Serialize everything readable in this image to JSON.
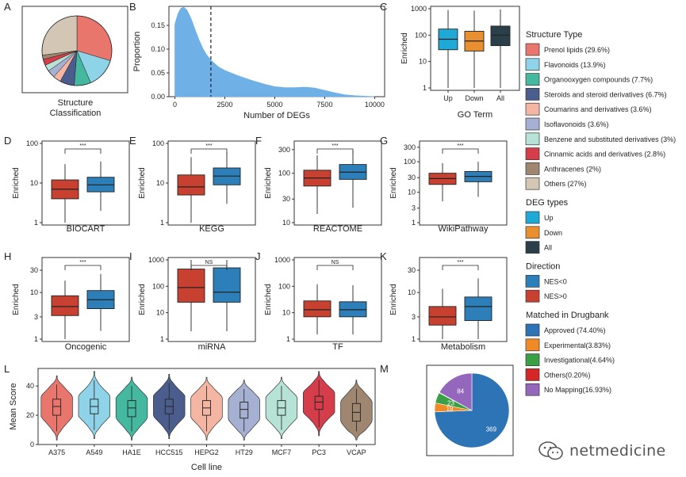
{
  "colors": {
    "up": "#1fa9d6",
    "down": "#e8902f",
    "all": "#2b3f4a",
    "nes_neg": "#2c7fb8",
    "nes_pos": "#c8402f",
    "density": "#6fb0e6"
  },
  "panel_letters": [
    "A",
    "B",
    "C",
    "D",
    "E",
    "F",
    "G",
    "H",
    "I",
    "J",
    "K",
    "L",
    "M"
  ],
  "chart_data": [
    {
      "id": "A",
      "type": "pie",
      "xlabel": "Structure\nClassification",
      "xlabel_lines": [
        "Structure",
        "Classification"
      ],
      "slices": [
        {
          "label": "Prenol lipids (29.6%)",
          "value": 29.6,
          "color": "#e8766d"
        },
        {
          "label": "Flavonoids (13.9%)",
          "value": 13.9,
          "color": "#8fd3e8"
        },
        {
          "label": "Organooxygen compounds (7.7%)",
          "value": 7.7,
          "color": "#45b8a0"
        },
        {
          "label": "Steroids and steroid derivatives (6.7%)",
          "value": 6.7,
          "color": "#4b5d8c"
        },
        {
          "label": "Coumarins and derivatives (3.6%)",
          "value": 3.6,
          "color": "#f4b6a3"
        },
        {
          "label": "Isoflavonoids (3.6%)",
          "value": 3.6,
          "color": "#a6b0d2"
        },
        {
          "label": "Benzene and substituted derivatives (3%)",
          "value": 3.0,
          "color": "#b7e2d6"
        },
        {
          "label": "Cinnamic acids and derivatives (2.8%)",
          "value": 2.8,
          "color": "#d43d49"
        },
        {
          "label": "Anthracenes (2%)",
          "value": 2.0,
          "color": "#9e8670"
        },
        {
          "label": "Others (27%)",
          "value": 27.0,
          "color": "#d4c6b4"
        }
      ]
    },
    {
      "id": "B",
      "type": "area",
      "xlabel": "Number of DEGs",
      "ylabel": "Proportion",
      "xlim": [
        -300,
        10500
      ],
      "ylim": [
        0,
        0.19
      ],
      "xticks": [
        0,
        2500,
        5000,
        7500,
        10000
      ],
      "xtick_labels": [
        "0",
        "2500",
        "5000",
        "7500",
        "10000"
      ],
      "yticks": [
        0,
        0.05,
        0.1,
        0.15
      ],
      "ytick_labels": [
        "0.00",
        "0.05",
        "0.10",
        "0.15"
      ],
      "x": [
        0,
        150,
        300,
        450,
        600,
        800,
        1000,
        1200,
        1400,
        1600,
        1800,
        2000,
        2200,
        2500,
        2800,
        3100,
        3500,
        4000,
        4500,
        5000,
        5500,
        6000,
        6500,
        7000,
        7500,
        8000,
        8500,
        9000,
        9500,
        10000
      ],
      "y": [
        0.152,
        0.174,
        0.186,
        0.188,
        0.182,
        0.165,
        0.142,
        0.12,
        0.101,
        0.087,
        0.077,
        0.069,
        0.062,
        0.055,
        0.05,
        0.045,
        0.039,
        0.032,
        0.026,
        0.021,
        0.019,
        0.019,
        0.02,
        0.018,
        0.013,
        0.008,
        0.004,
        0.002,
        0.001,
        0.0
      ],
      "vline": 1800
    },
    {
      "id": "C",
      "type": "box",
      "scale": "log",
      "xlabel": "GO Term",
      "ylabel": "Enriched",
      "ylim": [
        1,
        1000
      ],
      "yticks": [
        1,
        10,
        100,
        1000
      ],
      "ytick_labels": [
        "1",
        "10",
        "100",
        "1000"
      ],
      "categories": [
        "Up",
        "Down",
        "All"
      ],
      "boxes": [
        {
          "q1": 28,
          "median": 70,
          "q3": 170,
          "min": 1,
          "max": 900,
          "color_key": "up"
        },
        {
          "q1": 25,
          "median": 60,
          "q3": 140,
          "min": 1,
          "max": 850,
          "color_key": "down"
        },
        {
          "q1": 40,
          "median": 100,
          "q3": 220,
          "min": 1,
          "max": 950,
          "color_key": "all"
        }
      ]
    },
    {
      "id": "D",
      "type": "box",
      "scale": "log",
      "xlabel": "BIOCART",
      "ylabel": "Enriched",
      "ylim": [
        1,
        100
      ],
      "yticks": [
        1,
        10,
        100
      ],
      "ytick_labels": [
        "1",
        "10",
        "100"
      ],
      "sig": "***",
      "boxes": [
        {
          "q1": 4,
          "median": 7,
          "q3": 12,
          "min": 1,
          "max": 30,
          "color_key": "nes_pos"
        },
        {
          "q1": 6,
          "median": 9,
          "q3": 14,
          "min": 2,
          "max": 35,
          "color_key": "nes_neg"
        }
      ]
    },
    {
      "id": "E",
      "type": "box",
      "scale": "log",
      "xlabel": "KEGG",
      "ylabel": "Enriched",
      "ylim": [
        1,
        100
      ],
      "yticks": [
        1,
        10,
        100
      ],
      "ytick_labels": [
        "1",
        "10",
        "100"
      ],
      "sig": "***",
      "boxes": [
        {
          "q1": 5,
          "median": 8,
          "q3": 16,
          "min": 1,
          "max": 45,
          "color_key": "nes_pos"
        },
        {
          "q1": 9,
          "median": 15,
          "q3": 24,
          "min": 3,
          "max": 60,
          "color_key": "nes_neg"
        }
      ]
    },
    {
      "id": "F",
      "type": "box",
      "scale": "log",
      "xlabel": "REACTOME",
      "ylabel": "Enriched",
      "ylim": [
        10,
        400
      ],
      "yticks": [
        10,
        30,
        100,
        300
      ],
      "ytick_labels": [
        "10",
        "30",
        "100",
        "300"
      ],
      "sig": "***",
      "boxes": [
        {
          "q1": 55,
          "median": 80,
          "q3": 115,
          "min": 15,
          "max": 230,
          "color_key": "nes_pos"
        },
        {
          "q1": 75,
          "median": 105,
          "q3": 150,
          "min": 20,
          "max": 290,
          "color_key": "nes_neg"
        }
      ]
    },
    {
      "id": "G",
      "type": "box",
      "scale": "log",
      "xlabel": "WikiPathway",
      "ylabel": "Enriched",
      "ylim": [
        1,
        400
      ],
      "yticks": [
        1,
        3,
        10,
        30,
        100,
        300
      ],
      "ytick_labels": [
        "1",
        "3",
        "10",
        "30",
        "100",
        "300"
      ],
      "sig": "***",
      "boxes": [
        {
          "q1": 18,
          "median": 28,
          "q3": 42,
          "min": 5,
          "max": 90,
          "color_key": "nes_pos"
        },
        {
          "q1": 22,
          "median": 33,
          "q3": 48,
          "min": 7,
          "max": 100,
          "color_key": "nes_neg"
        }
      ]
    },
    {
      "id": "H",
      "type": "box",
      "scale": "log",
      "xlabel": "Oncogenic",
      "ylabel": "Enriched",
      "ylim": [
        1,
        50
      ],
      "yticks": [
        1,
        3,
        10,
        30
      ],
      "ytick_labels": [
        "1",
        "3",
        "10",
        "30"
      ],
      "sig": "***",
      "boxes": [
        {
          "q1": 3.2,
          "median": 5,
          "q3": 8.5,
          "min": 1,
          "max": 18,
          "color_key": "nes_pos"
        },
        {
          "q1": 4.5,
          "median": 7,
          "q3": 11,
          "min": 1.5,
          "max": 25,
          "color_key": "nes_neg"
        }
      ]
    },
    {
      "id": "I",
      "type": "box",
      "scale": "log",
      "xlabel": "miRNA",
      "ylabel": "Enriched",
      "ylim": [
        1,
        1000
      ],
      "yticks": [
        1,
        10,
        100,
        1000
      ],
      "ytick_labels": [
        "1",
        "10",
        "100",
        "1000"
      ],
      "sig": "NS",
      "boxes": [
        {
          "q1": 25,
          "median": 90,
          "q3": 450,
          "min": 2,
          "max": 1000,
          "color_key": "nes_pos"
        },
        {
          "q1": 25,
          "median": 60,
          "q3": 500,
          "min": 2,
          "max": 1000,
          "color_key": "nes_neg"
        }
      ]
    },
    {
      "id": "J",
      "type": "box",
      "scale": "log",
      "xlabel": "TF",
      "ylabel": "Enriched",
      "ylim": [
        1,
        1000
      ],
      "yticks": [
        1,
        10,
        100,
        1000
      ],
      "ytick_labels": [
        "1",
        "10",
        "100",
        "1000"
      ],
      "sig": "NS",
      "boxes": [
        {
          "q1": 7,
          "median": 13,
          "q3": 28,
          "min": 1.5,
          "max": 120,
          "color_key": "nes_pos"
        },
        {
          "q1": 7,
          "median": 13,
          "q3": 26,
          "min": 1.5,
          "max": 110,
          "color_key": "nes_neg"
        }
      ]
    },
    {
      "id": "K",
      "type": "box",
      "scale": "log",
      "xlabel": "Metabolism",
      "ylabel": "Enriched",
      "ylim": [
        1,
        50
      ],
      "yticks": [
        1,
        3,
        10,
        30
      ],
      "ytick_labels": [
        "1",
        "3",
        "10",
        "30"
      ],
      "sig": "***",
      "boxes": [
        {
          "q1": 2,
          "median": 3,
          "q3": 5,
          "min": 1,
          "max": 12,
          "color_key": "nes_pos"
        },
        {
          "q1": 2.5,
          "median": 5,
          "q3": 8,
          "min": 1,
          "max": 20,
          "color_key": "nes_neg"
        }
      ]
    },
    {
      "id": "L",
      "type": "violin",
      "xlabel": "Cell line",
      "ylabel": "Mean Score",
      "ylim": [
        0,
        52
      ],
      "yticks": [
        0,
        20,
        40
      ],
      "ytick_labels": [
        "0",
        "20",
        "40"
      ],
      "categories": [
        "A375",
        "A549",
        "HA1E",
        "HCC515",
        "HEPG2",
        "HT29",
        "MCF7",
        "PC3",
        "VCAP"
      ],
      "colors": [
        "#e8766d",
        "#8fd3e8",
        "#45b8a0",
        "#4b5d8c",
        "#f4b6a3",
        "#a6b0d2",
        "#b7e2d6",
        "#d43d49",
        "#9e8670"
      ],
      "stats": [
        {
          "min": 3,
          "q1": 20,
          "median": 26,
          "q3": 31,
          "max": 47
        },
        {
          "min": 4,
          "q1": 21,
          "median": 26,
          "q3": 31,
          "max": 50
        },
        {
          "min": 3,
          "q1": 19,
          "median": 25,
          "q3": 30,
          "max": 46
        },
        {
          "min": 4,
          "q1": 21,
          "median": 26,
          "q3": 31,
          "max": 48
        },
        {
          "min": 3,
          "q1": 20,
          "median": 25,
          "q3": 30,
          "max": 46
        },
        {
          "min": 3,
          "q1": 18,
          "median": 24,
          "q3": 29,
          "max": 44
        },
        {
          "min": 4,
          "q1": 20,
          "median": 25,
          "q3": 30,
          "max": 46
        },
        {
          "min": 6,
          "q1": 24,
          "median": 29,
          "q3": 33,
          "max": 50
        },
        {
          "min": 3,
          "q1": 16,
          "median": 22,
          "q3": 28,
          "max": 44
        }
      ]
    },
    {
      "id": "M",
      "type": "pie",
      "slices": [
        {
          "label": "Approved (74.40%)",
          "value": 369,
          "color": "#2c74b5",
          "show_value": true
        },
        {
          "label": "Experimental(3.83%)",
          "value": 19,
          "color": "#f08a24",
          "show_value": true
        },
        {
          "label": "Investigational(4.64%)",
          "value": 23,
          "color": "#3aa045",
          "show_value": true
        },
        {
          "label": "Others(0.20%)",
          "value": 1,
          "color": "#d62728",
          "show_value": false
        },
        {
          "label": "No Mapping(16.93%)",
          "value": 84,
          "color": "#9467bd",
          "show_value": true
        }
      ]
    }
  ],
  "legends": [
    {
      "title": "Structure Type",
      "source": "A"
    },
    {
      "title": "DEG types",
      "items": [
        {
          "label": "Up",
          "color_key": "up"
        },
        {
          "label": "Down",
          "color_key": "down"
        },
        {
          "label": "All",
          "color_key": "all"
        }
      ]
    },
    {
      "title": "Direction",
      "items": [
        {
          "label": "NES<0",
          "color_key": "nes_neg"
        },
        {
          "label": "NES>0",
          "color_key": "nes_pos"
        }
      ]
    },
    {
      "title": "Matched in Drugbank",
      "source": "M"
    }
  ],
  "watermark": {
    "text": "netmedicine",
    "icon": "wechat-icon"
  }
}
